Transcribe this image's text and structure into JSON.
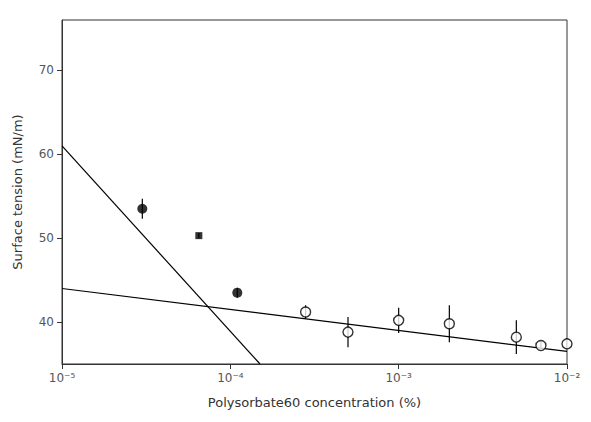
{
  "chart_data": {
    "type": "scatter",
    "title": "",
    "xlabel": "Polysorbate60 concentration (%)",
    "ylabel": "Surface tension (mN/m)",
    "log": "x",
    "grid": false,
    "xlim": [
      1e-05,
      0.01
    ],
    "xticks": [
      {
        "value": 1e-05,
        "label": "10⁻⁵"
      },
      {
        "value": 0.0001,
        "label": "10⁻⁴"
      },
      {
        "value": 0.001,
        "label": "10⁻³"
      },
      {
        "value": 0.01,
        "label": "10⁻²"
      }
    ],
    "ylim": [
      35,
      76
    ],
    "yticks": [
      40,
      50,
      60,
      70
    ],
    "series": [
      {
        "type": "line",
        "color": "#000000",
        "line_style": "solid",
        "x": [
          1e-05,
          0.00015
        ],
        "values": [
          61.0,
          35.0
        ]
      },
      {
        "type": "line",
        "color": "#000000",
        "line_style": "solid",
        "x": [
          1e-05,
          0.01
        ],
        "values": [
          44.0,
          36.5
        ]
      },
      {
        "type": "scatter",
        "marker": "circle",
        "color": "#000000",
        "x": [
          3e-05,
          0.00011
        ],
        "values": [
          53.5,
          43.5
        ],
        "yerr": [
          1.2,
          0.6
        ]
      },
      {
        "type": "scatter",
        "marker": "square",
        "color": "#000000",
        "x": [
          6.5e-05
        ],
        "values": [
          50.3
        ],
        "yerr": [
          0.3
        ]
      },
      {
        "type": "scatter",
        "marker": "open_circle",
        "color": "#000000",
        "x": [
          0.00028,
          0.0005,
          0.001,
          0.002,
          0.005,
          0.007,
          0.01
        ],
        "values": [
          41.2,
          38.8,
          40.2,
          39.8,
          38.2,
          37.2,
          37.4
        ],
        "yerr": [
          0.8,
          1.8,
          1.5,
          2.2,
          2.0,
          0.5,
          0.6
        ]
      }
    ]
  }
}
